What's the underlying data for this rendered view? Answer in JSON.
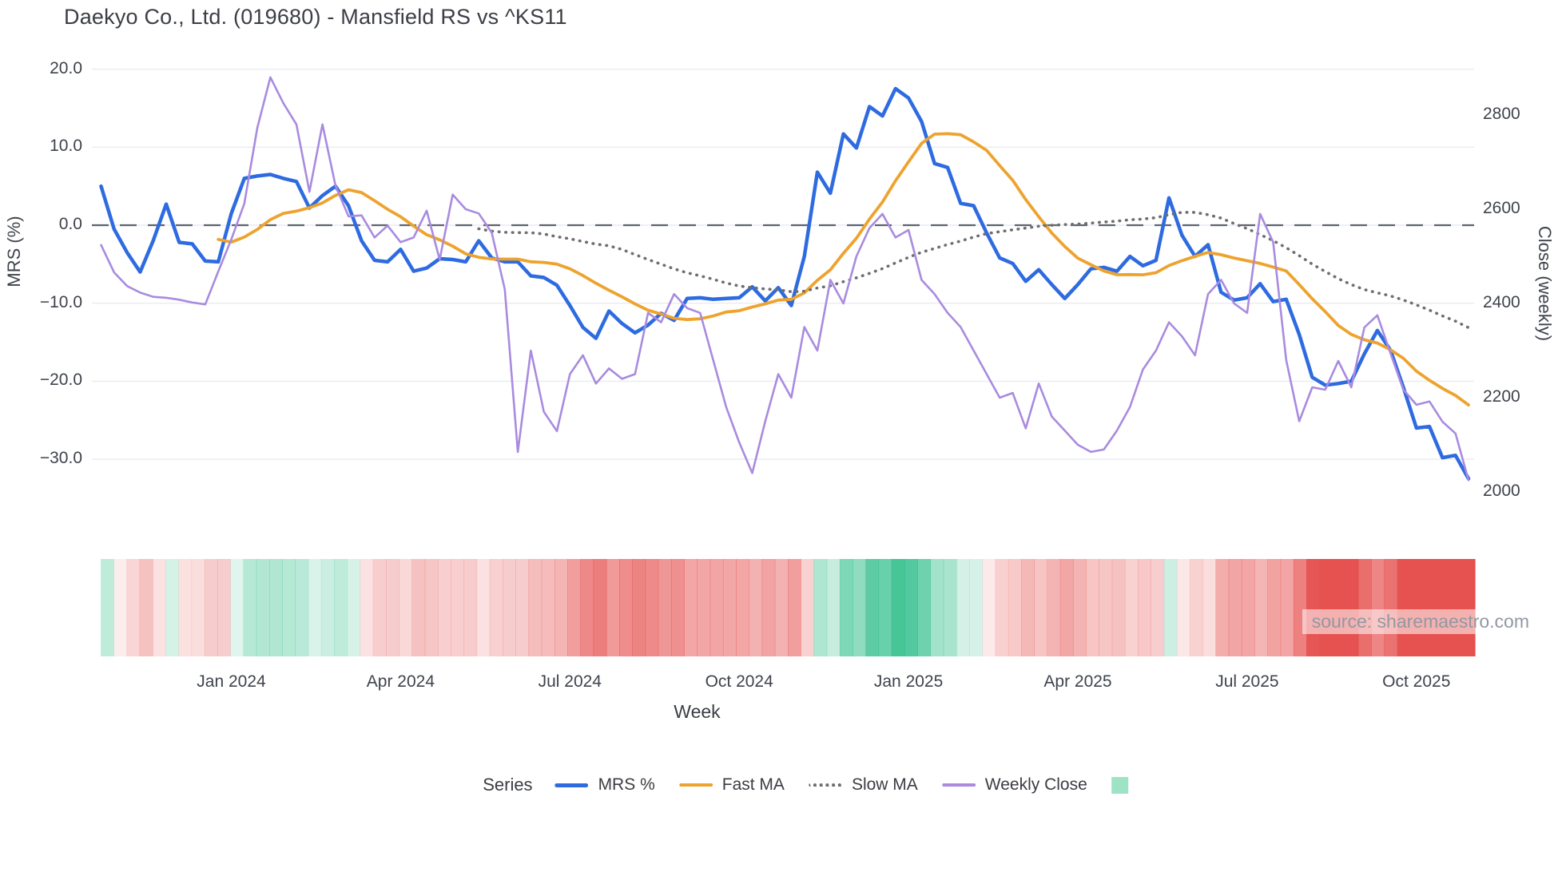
{
  "title": "Daekyo Co., Ltd. (019680) - Mansfield RS vs ^KS11",
  "source": "source: sharemaestro.com",
  "axes": {
    "y_left": {
      "title": "MRS (%)",
      "ticks": [
        {
          "label": "20.0",
          "value": 20
        },
        {
          "label": "10.0",
          "value": 10
        },
        {
          "label": "0.0",
          "value": 0
        },
        {
          "label": "−10.0",
          "value": -10
        },
        {
          "label": "−20.0",
          "value": -20
        },
        {
          "label": "−30.0",
          "value": -30
        }
      ]
    },
    "y_right": {
      "title": "Close (weekly)",
      "ticks": [
        {
          "label": "2800",
          "value": 2800
        },
        {
          "label": "2600",
          "value": 2600
        },
        {
          "label": "2400",
          "value": 2400
        },
        {
          "label": "2200",
          "value": 2200
        },
        {
          "label": "2000",
          "value": 2000
        }
      ]
    },
    "x": {
      "title": "Week",
      "ticks": [
        {
          "label": "Jan 2024",
          "week": 10
        },
        {
          "label": "Apr 2024",
          "week": 23
        },
        {
          "label": "Jul 2024",
          "week": 36
        },
        {
          "label": "Oct 2024",
          "week": 49
        },
        {
          "label": "Jan 2025",
          "week": 62
        },
        {
          "label": "Apr 2025",
          "week": 75
        },
        {
          "label": "Jul 2025",
          "week": 88
        },
        {
          "label": "Oct 2025",
          "week": 101
        }
      ]
    }
  },
  "legend": {
    "title": "Series",
    "items": [
      {
        "label": "MRS %",
        "swatch": "line-blue"
      },
      {
        "label": "Fast MA",
        "swatch": "line-orange"
      },
      {
        "label": "Slow MA",
        "swatch": "line-dotted-gray"
      },
      {
        "label": "Weekly Close",
        "swatch": "line-purple"
      },
      {
        "label": "",
        "swatch": "square-green"
      }
    ]
  },
  "colors": {
    "mrs": "#2e6be0",
    "fast_ma": "#eda32e",
    "slow_ma": "#6e6e6e",
    "weekly_close": "#a98bdf",
    "zero_line": "#5c6372",
    "grid": "#e9ebf3",
    "heat_positive": "#2fbe8a",
    "heat_negative": "#e55250",
    "legend_square": "#9fe3c6"
  },
  "chart_data": {
    "type": "line",
    "x_unit": "week",
    "n_points": 106,
    "x_tick_labels": [
      "Jan 2024",
      "Apr 2024",
      "Jul 2024",
      "Oct 2024",
      "Jan 2025",
      "Apr 2025",
      "Jul 2025",
      "Oct 2025"
    ],
    "ylabel_left": "MRS (%)",
    "ylabel_right": "Close (weekly)",
    "ylim_left": [
      -36.5,
      23.2
    ],
    "ylim_right": [
      1959,
      2951
    ],
    "zero_reference_line": {
      "axis": "left",
      "value": 0,
      "style": "dashed"
    },
    "series": [
      {
        "name": "MRS %",
        "axis": "left",
        "style": "solid",
        "color": "#2e6be0",
        "width": 4.5,
        "values": [
          5.0,
          -0.5,
          -3.5,
          -6.0,
          -2.0,
          2.7,
          -2.2,
          -2.4,
          -4.6,
          -4.7,
          1.5,
          6.0,
          6.3,
          6.5,
          6.0,
          5.6,
          2.2,
          3.8,
          5.0,
          2.5,
          -2.0,
          -4.5,
          -4.7,
          -3.1,
          -5.9,
          -5.5,
          -4.3,
          -4.4,
          -4.7,
          -2.0,
          -4.2,
          -4.7,
          -4.7,
          -6.5,
          -6.7,
          -7.7,
          -10.3,
          -13.1,
          -14.5,
          -11.0,
          -12.6,
          -13.8,
          -12.8,
          -11.3,
          -12.2,
          -9.4,
          -9.3,
          -9.5,
          -9.4,
          -9.3,
          -7.9,
          -9.7,
          -8.0,
          -10.3,
          -4.0,
          6.8,
          4.1,
          11.7,
          9.9,
          15.2,
          14.0,
          17.5,
          16.3,
          13.3,
          7.9,
          7.4,
          2.8,
          2.5,
          -1.0,
          -4.2,
          -4.9,
          -7.2,
          -5.7,
          -7.6,
          -9.4,
          -7.6,
          -5.6,
          -5.4,
          -5.9,
          -4.0,
          -5.2,
          -4.5,
          3.5,
          -1.3,
          -4.0,
          -2.5,
          -8.6,
          -9.6,
          -9.3,
          -7.5,
          -9.8,
          -9.5,
          -14.0,
          -19.5,
          -20.5,
          -20.3,
          -20.0,
          -16.5,
          -13.5,
          -16.0,
          -20.8,
          -26.0,
          -25.8,
          -29.8,
          -29.5,
          -32.5
        ]
      },
      {
        "name": "Fast MA",
        "axis": "left",
        "style": "solid",
        "color": "#eda32e",
        "width": 3.5,
        "derived": "rolling_mean_of_MRS",
        "window": 10
      },
      {
        "name": "Slow MA",
        "axis": "left",
        "style": "dotted",
        "color": "#6e6e6e",
        "width": 3.5,
        "derived": "rolling_mean_of_MRS",
        "window": 30
      },
      {
        "name": "Weekly Close",
        "axis": "right",
        "style": "solid",
        "color": "#a98bdf",
        "width": 2.5,
        "values": [
          2524,
          2466,
          2437,
          2423,
          2414,
          2412,
          2408,
          2402,
          2398,
          2468,
          2536,
          2612,
          2773,
          2880,
          2825,
          2780,
          2637,
          2780,
          2650,
          2585,
          2587,
          2540,
          2565,
          2530,
          2540,
          2597,
          2493,
          2631,
          2600,
          2591,
          2550,
          2430,
          2085,
          2300,
          2170,
          2129,
          2250,
          2290,
          2230,
          2262,
          2240,
          2250,
          2380,
          2360,
          2420,
          2390,
          2380,
          2280,
          2180,
          2105,
          2040,
          2150,
          2250,
          2200,
          2350,
          2300,
          2450,
          2400,
          2500,
          2560,
          2590,
          2540,
          2556,
          2450,
          2420,
          2380,
          2350,
          2300,
          2250,
          2200,
          2210,
          2135,
          2230,
          2160,
          2130,
          2100,
          2085,
          2090,
          2130,
          2180,
          2260,
          2300,
          2360,
          2330,
          2290,
          2420,
          2450,
          2400,
          2380,
          2590,
          2530,
          2280,
          2150,
          2222,
          2217,
          2278,
          2222,
          2349,
          2375,
          2295,
          2217,
          2185,
          2192,
          2149,
          2124,
          2025
        ]
      }
    ],
    "heat_strip": {
      "derived_from": "MRS %",
      "rule": "green when MRS > 0, red when MRS < 0, intensity proportional to |MRS|"
    }
  }
}
